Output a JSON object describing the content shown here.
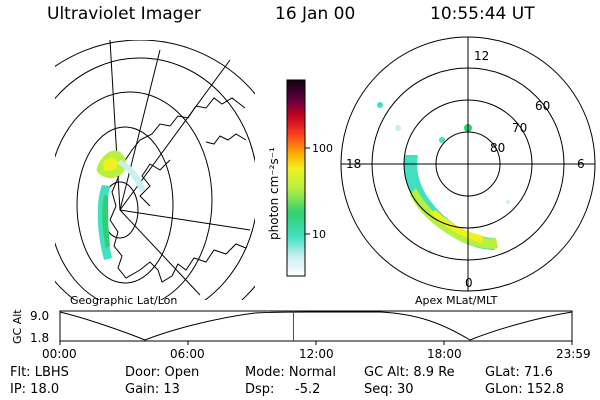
{
  "header": {
    "title": "Ultraviolet Imager",
    "date": "16 Jan 00",
    "time": "10:55:44 UT"
  },
  "geo_map": {
    "label": "Geographic Lat/Lon"
  },
  "polar_plot": {
    "label": "Apex MLat/MLT",
    "mlt_labels": [
      "12",
      "18",
      "6",
      "0"
    ],
    "lat_labels": [
      "60",
      "70",
      "80"
    ]
  },
  "colorbar": {
    "unit": "photon cm⁻²s⁻¹",
    "ticks": [
      "100",
      "10"
    ]
  },
  "altitude_strip": {
    "ylabel": "GC Alt",
    "ymax": "9.0",
    "ymin": "1.8",
    "time_ticks": [
      "00:00",
      "06:00",
      "12:00",
      "18:00",
      "23:59"
    ],
    "marker_fraction": 0.456
  },
  "info": {
    "filter": "Flt: LBHS",
    "door": "Door: Open",
    "mode": "Mode: Normal",
    "gc_alt": "GC Alt: 8.9 Re",
    "glat": "GLat:  71.6",
    "ip": "IP: 18.0",
    "gain": "Gain: 13",
    "dsp_label": "Dsp:",
    "dsp_value": "-5.2",
    "seq": "Seq: 30",
    "glon": "GLon: 152.8"
  },
  "colors": {
    "marker": "#ff0000"
  }
}
